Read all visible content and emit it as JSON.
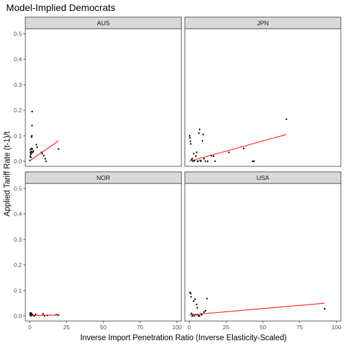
{
  "chart_data": {
    "type": "scatter",
    "title": "Model-Implied Democrats",
    "xlabel": "Inverse Import Penetration Ratio (Inverse Elasticity-Scaled)",
    "ylabel": "Applied Tariff Rate (t-1)/t",
    "xlim": [
      -3,
      103
    ],
    "ylim": [
      -0.02,
      0.52
    ],
    "x_ticks": [
      0,
      25,
      50,
      75,
      100
    ],
    "y_ticks": [
      0.0,
      0.1,
      0.2,
      0.3,
      0.4,
      0.5
    ],
    "y_tick_labels": [
      "0.0",
      "0.1",
      "0.2",
      "0.3",
      "0.4",
      "0.5"
    ],
    "grid": false,
    "facet_layout": "2x2",
    "colors": {
      "points": "#000000",
      "fit_line": "#ff0000",
      "strip": "#d9d9d9",
      "panel_border": "#333333"
    },
    "panels": [
      {
        "name": "AUS",
        "points": [
          [
            0.2,
            0.003
          ],
          [
            0.3,
            0.02
          ],
          [
            0.4,
            0.035
          ],
          [
            0.5,
            0.045
          ],
          [
            0.7,
            0.028
          ],
          [
            0.8,
            0.015
          ],
          [
            1.0,
            0.05
          ],
          [
            1.1,
            0.03
          ],
          [
            1.2,
            0.038
          ],
          [
            1.3,
            0.095
          ],
          [
            1.4,
            0.1
          ],
          [
            1.5,
            0.14
          ],
          [
            1.6,
            0.195
          ],
          [
            1.8,
            0.048
          ],
          [
            2.0,
            0.035
          ],
          [
            2.5,
            0.04
          ],
          [
            4.5,
            0.065
          ],
          [
            5.0,
            0.055
          ],
          [
            8.0,
            0.035
          ],
          [
            8.5,
            0.03
          ],
          [
            9.5,
            0.022
          ],
          [
            10.5,
            0.01
          ],
          [
            11.0,
            0.0
          ],
          [
            19.5,
            0.048
          ]
        ],
        "fit": {
          "x": [
            0,
            19.5
          ],
          "y": [
            0.002,
            0.08
          ]
        }
      },
      {
        "name": "JPN",
        "points": [
          [
            0.3,
            0.1
          ],
          [
            0.5,
            0.092
          ],
          [
            0.8,
            0.078
          ],
          [
            1.0,
            0.068
          ],
          [
            1.5,
            0.005
          ],
          [
            2.0,
            0.01
          ],
          [
            2.5,
            0.0
          ],
          [
            3.0,
            0.03
          ],
          [
            3.5,
            0.002
          ],
          [
            4.5,
            0.02
          ],
          [
            5.0,
            0.035
          ],
          [
            5.5,
            0.0
          ],
          [
            6.0,
            0.0
          ],
          [
            6.5,
            0.11
          ],
          [
            7.0,
            0.125
          ],
          [
            7.5,
            0.003
          ],
          [
            8.0,
            0.0
          ],
          [
            9.0,
            0.08
          ],
          [
            9.5,
            0.105
          ],
          [
            10.0,
            0.01
          ],
          [
            11.0,
            0.0
          ],
          [
            12.5,
            0.0
          ],
          [
            15.0,
            0.022
          ],
          [
            16.5,
            0.02
          ],
          [
            17.5,
            0.0
          ],
          [
            27.0,
            0.035
          ],
          [
            37.0,
            0.05
          ],
          [
            43.0,
            0.0
          ],
          [
            44.0,
            0.0
          ],
          [
            66.0,
            0.165
          ]
        ],
        "fit": {
          "x": [
            0,
            66
          ],
          "y": [
            0.0,
            0.105
          ]
        }
      },
      {
        "name": "NOR",
        "points": [
          [
            0.2,
            0.005
          ],
          [
            0.4,
            0.012
          ],
          [
            0.6,
            0.0
          ],
          [
            0.8,
            0.008
          ],
          [
            1.0,
            0.003
          ],
          [
            1.2,
            0.01
          ],
          [
            1.5,
            0.002
          ],
          [
            2.0,
            0.005
          ],
          [
            3.0,
            0.0
          ],
          [
            4.0,
            0.006
          ],
          [
            9.0,
            0.008
          ],
          [
            10.0,
            0.0
          ],
          [
            12.0,
            0.002
          ],
          [
            18.0,
            0.005
          ],
          [
            19.5,
            0.003
          ]
        ],
        "fit": {
          "x": [
            0,
            19.5
          ],
          "y": [
            0.002,
            0.004
          ]
        }
      },
      {
        "name": "USA",
        "points": [
          [
            0.5,
            0.092
          ],
          [
            1.0,
            0.088
          ],
          [
            1.2,
            0.075
          ],
          [
            1.5,
            0.01
          ],
          [
            2.0,
            0.0
          ],
          [
            2.5,
            0.005
          ],
          [
            3.0,
            0.058
          ],
          [
            3.5,
            0.0
          ],
          [
            4.0,
            0.065
          ],
          [
            4.5,
            0.005
          ],
          [
            5.0,
            0.045
          ],
          [
            5.5,
            0.032
          ],
          [
            6.0,
            0.003
          ],
          [
            6.5,
            0.0
          ],
          [
            7.0,
            0.0
          ],
          [
            8.0,
            0.008
          ],
          [
            8.5,
            0.005
          ],
          [
            10.0,
            0.015
          ],
          [
            11.0,
            0.02
          ],
          [
            12.0,
            0.068
          ],
          [
            92.0,
            0.028
          ]
        ],
        "fit": {
          "x": [
            0,
            92
          ],
          "y": [
            0.004,
            0.05
          ]
        }
      }
    ]
  }
}
